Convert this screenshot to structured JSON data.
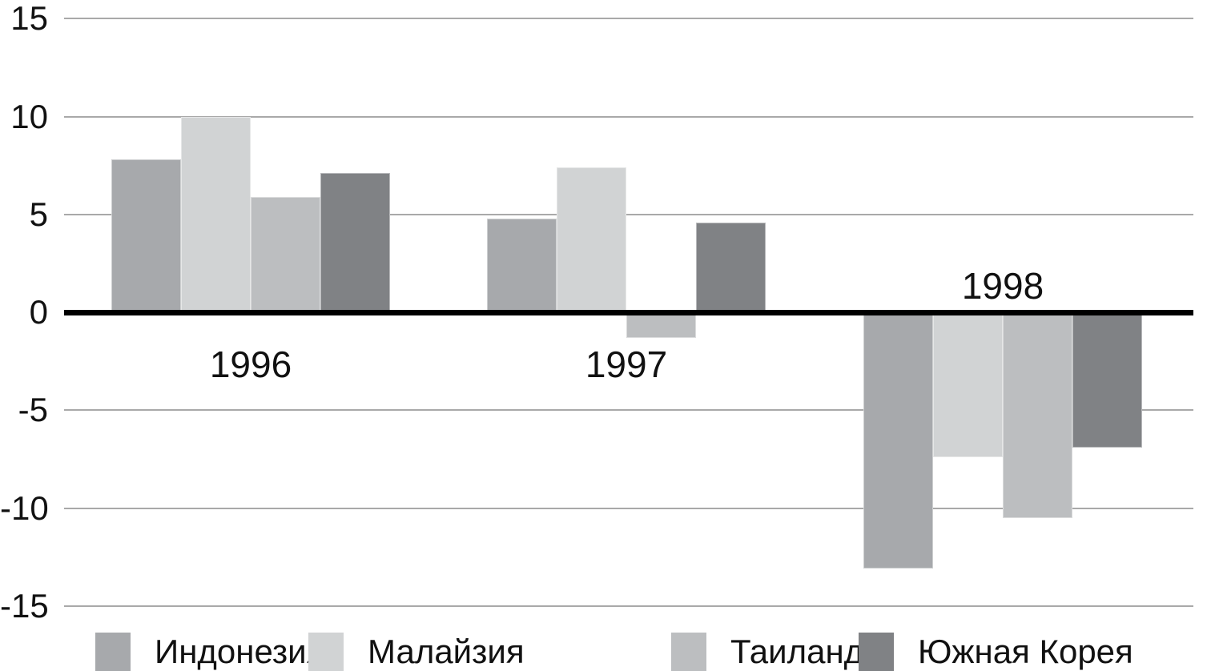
{
  "chart_data": {
    "type": "bar",
    "categories": [
      "1996",
      "1997",
      "1998"
    ],
    "series": [
      {
        "name": "Индонезия",
        "color": "#a7a9ac",
        "values": [
          7.8,
          4.8,
          -13.1
        ]
      },
      {
        "name": "Малайзия",
        "color": "#d1d3d4",
        "values": [
          10.0,
          7.4,
          -7.4
        ]
      },
      {
        "name": "Таиланд",
        "color": "#bcbec0",
        "values": [
          5.9,
          -1.3,
          -10.5
        ]
      },
      {
        "name": "Южная Корея",
        "color": "#808285",
        "values": [
          7.1,
          4.6,
          -6.9
        ]
      }
    ],
    "ylim": [
      -15,
      15
    ],
    "yticks": [
      15,
      10,
      5,
      0,
      -5,
      -10,
      -15
    ],
    "ytick_labels": [
      "15",
      "10",
      "5",
      "0",
      "-5",
      "-10",
      "-15"
    ],
    "grid": true,
    "gridline_color": "#a9a9a9",
    "zero_axis_color": "#000000",
    "text_color": "#111111",
    "legend_position": "bottom"
  }
}
